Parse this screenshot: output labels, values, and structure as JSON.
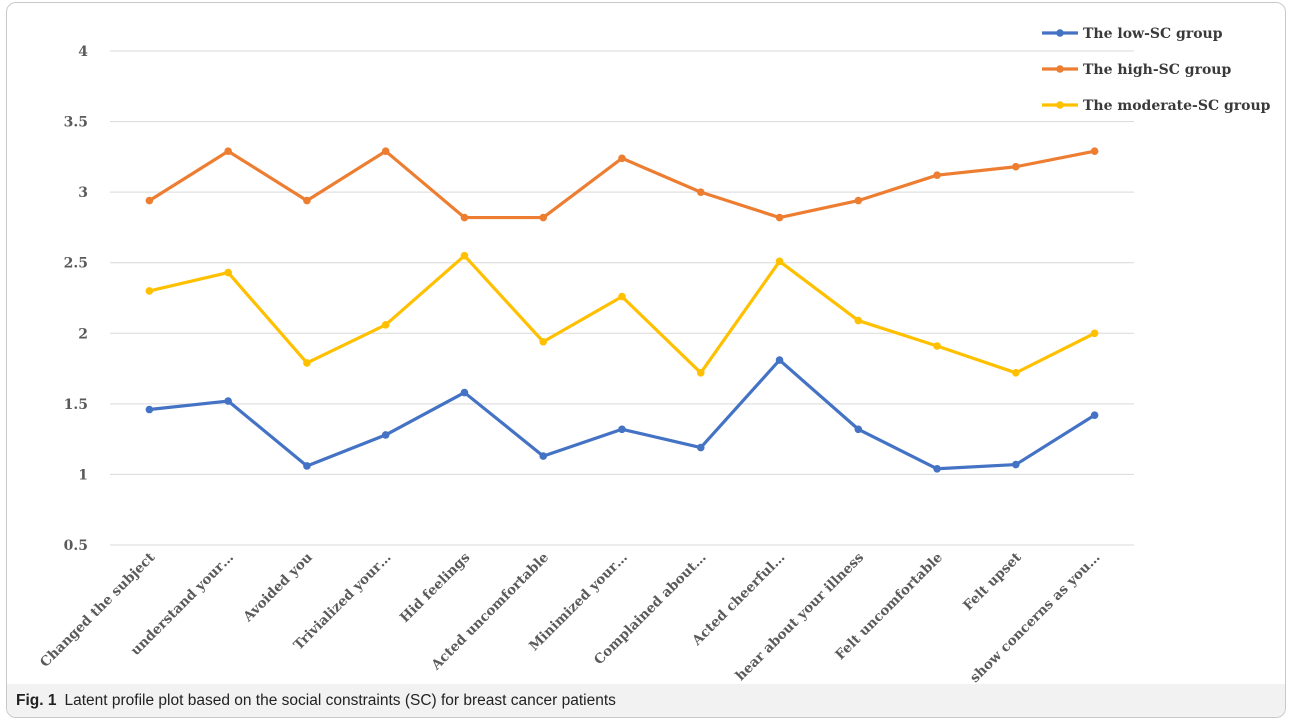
{
  "chart_data": {
    "type": "line",
    "categories": [
      "Changed the subject",
      "understand your…",
      "Avoided you",
      "Trivialized your…",
      "Hid feelings",
      "Acted uncomfortable",
      "Minimized your…",
      "Complained about…",
      "Acted cheerful…",
      "hear about your illness",
      "Felt uncomfortable",
      "Felt upset",
      "show concerns as you…"
    ],
    "ylim": [
      0.5,
      4
    ],
    "yticks": [
      "0.5",
      "1",
      "1.5",
      "2",
      "2.5",
      "3",
      "3.5",
      "4"
    ],
    "ytick_values": [
      0.5,
      1,
      1.5,
      2,
      2.5,
      3,
      3.5,
      4
    ],
    "grid": true,
    "legend_position": "top-right",
    "series": [
      {
        "name": "The low-SC group",
        "color": "#4472c4",
        "values": [
          1.46,
          1.52,
          1.06,
          1.28,
          1.58,
          1.13,
          1.32,
          1.19,
          1.81,
          1.32,
          1.04,
          1.07,
          1.42
        ]
      },
      {
        "name": "The high-SC group",
        "color": "#ed7d31",
        "values": [
          2.94,
          3.29,
          2.94,
          3.29,
          2.82,
          2.82,
          3.24,
          3.0,
          2.82,
          2.94,
          3.12,
          3.18,
          3.29
        ]
      },
      {
        "name": "The moderate-SC group",
        "color": "#ffc000",
        "values": [
          2.3,
          2.43,
          1.79,
          2.06,
          2.55,
          1.94,
          2.26,
          1.72,
          2.51,
          2.09,
          1.91,
          1.72,
          2.0
        ]
      }
    ]
  },
  "caption": {
    "label": "Fig. 1",
    "text": "Latent profile plot based on the social constraints (SC) for breast cancer patients"
  }
}
